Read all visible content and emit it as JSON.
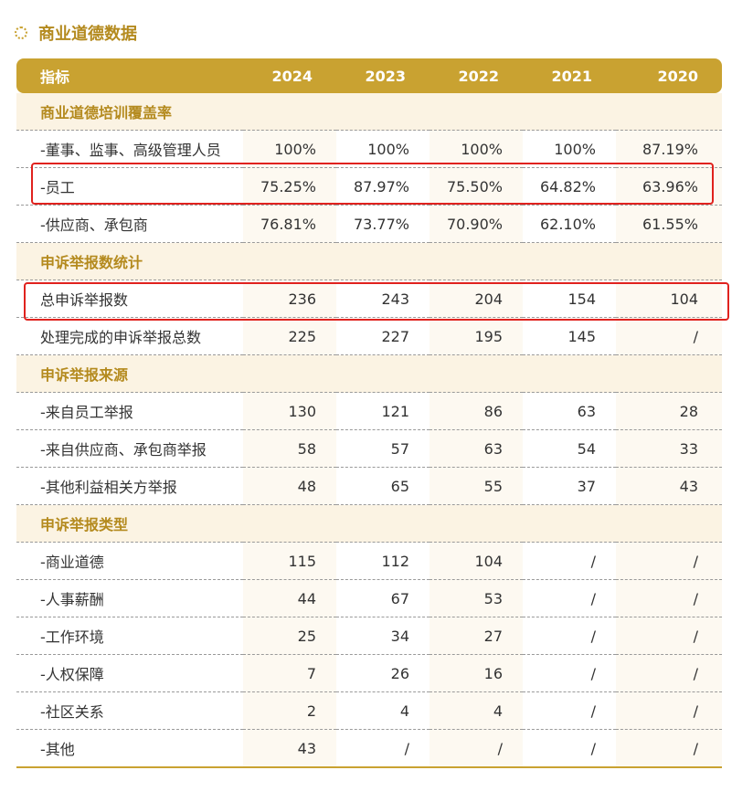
{
  "title": "商业道德数据",
  "header": {
    "label": "指标",
    "years": [
      "2024",
      "2023",
      "2022",
      "2021",
      "2020"
    ]
  },
  "sections": [
    {
      "title": "商业道德培训覆盖率",
      "rows": [
        {
          "label": "-董事、监事、高级管理人员",
          "values": [
            "100%",
            "100%",
            "100%",
            "100%",
            "87.19%"
          ]
        },
        {
          "label": "-员工",
          "values": [
            "75.25%",
            "87.97%",
            "75.50%",
            "64.82%",
            "63.96%"
          ]
        },
        {
          "label": "-供应商、承包商",
          "values": [
            "76.81%",
            "73.77%",
            "70.90%",
            "62.10%",
            "61.55%"
          ]
        }
      ]
    },
    {
      "title": "申诉举报数统计",
      "rows": [
        {
          "label": "总申诉举报数",
          "values": [
            "236",
            "243",
            "204",
            "154",
            "104"
          ]
        },
        {
          "label": "处理完成的申诉举报总数",
          "values": [
            "225",
            "227",
            "195",
            "145",
            "/"
          ]
        }
      ]
    },
    {
      "title": "申诉举报来源",
      "rows": [
        {
          "label": "-来自员工举报",
          "values": [
            "130",
            "121",
            "86",
            "63",
            "28"
          ]
        },
        {
          "label": "-来自供应商、承包商举报",
          "values": [
            "58",
            "57",
            "63",
            "54",
            "33"
          ]
        },
        {
          "label": "-其他利益相关方举报",
          "values": [
            "48",
            "65",
            "55",
            "37",
            "43"
          ]
        }
      ]
    },
    {
      "title": "申诉举报类型",
      "rows": [
        {
          "label": "-商业道德",
          "values": [
            "115",
            "112",
            "104",
            "/",
            "/"
          ]
        },
        {
          "label": "-人事薪酬",
          "values": [
            "44",
            "67",
            "53",
            "/",
            "/"
          ]
        },
        {
          "label": "-工作环境",
          "values": [
            "25",
            "34",
            "27",
            "/",
            "/"
          ]
        },
        {
          "label": "-人权保障",
          "values": [
            "7",
            "26",
            "16",
            "/",
            "/"
          ]
        },
        {
          "label": "-社区关系",
          "values": [
            "2",
            "4",
            "4",
            "/",
            "/"
          ]
        },
        {
          "label": "-其他",
          "values": [
            "43",
            "/",
            "/",
            "/",
            "/"
          ]
        }
      ]
    }
  ],
  "colors": {
    "accent": "#C9A231",
    "section_bg": "#FBF3E3",
    "section_text": "#B48A1E",
    "highlight": "#E0221E"
  }
}
